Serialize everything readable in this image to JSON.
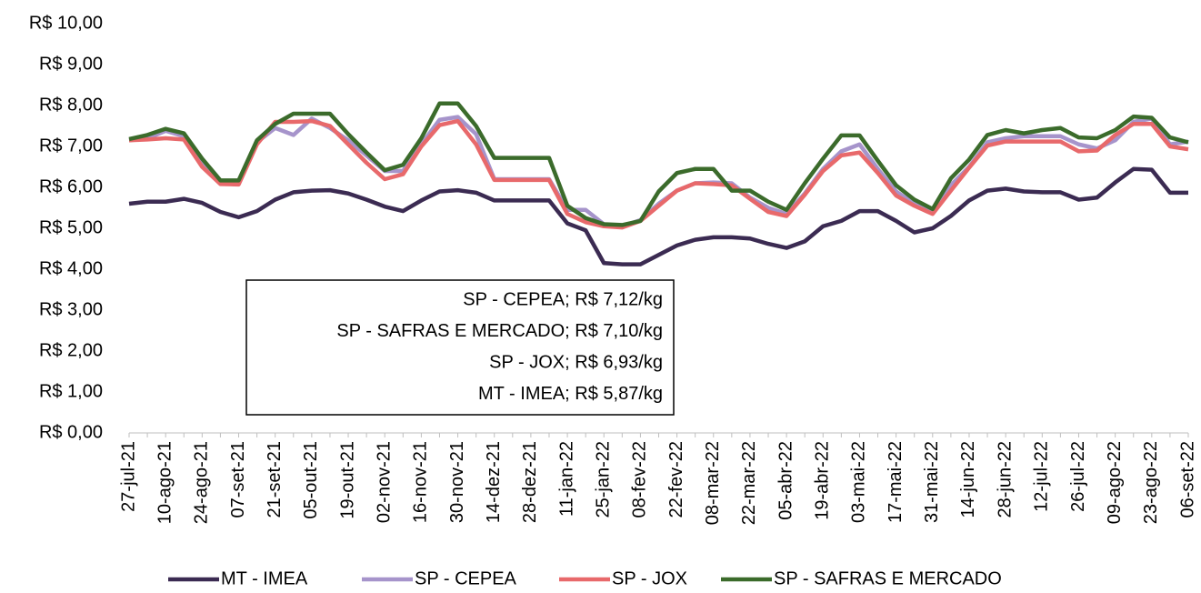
{
  "chart_data": {
    "type": "line",
    "categories": [
      "27-jul-21",
      null,
      "10-ago-21",
      null,
      "24-ago-21",
      null,
      "07-set-21",
      null,
      "21-set-21",
      null,
      "05-out-21",
      null,
      "19-out-21",
      null,
      "02-nov-21",
      null,
      "16-nov-21",
      null,
      "30-nov-21",
      null,
      "14-dez-21",
      null,
      "28-dez-21",
      null,
      "11-jan-22",
      null,
      "25-jan-22",
      null,
      "08-fev-22",
      null,
      "22-fev-22",
      null,
      "08-mar-22",
      null,
      "22-mar-22",
      null,
      "05-abr-22",
      null,
      "19-abr-22",
      null,
      "03-mai-22",
      null,
      "17-mai-22",
      null,
      "31-mai-22",
      null,
      "14-jun-22",
      null,
      "28-jun-22",
      null,
      "12-jul-22",
      null,
      "26-jul-22",
      null,
      "09-ago-22",
      null,
      "23-ago-22",
      null,
      "06-set-22"
    ],
    "series": [
      {
        "name": "MT - IMEA",
        "color": "#3b2b52",
        "values": [
          5.6,
          5.65,
          5.65,
          5.72,
          5.62,
          5.4,
          5.27,
          5.42,
          5.7,
          5.88,
          5.92,
          5.93,
          5.85,
          5.7,
          5.53,
          5.42,
          5.68,
          5.9,
          5.93,
          5.87,
          5.68,
          5.68,
          5.68,
          5.68,
          5.12,
          4.95,
          4.15,
          4.12,
          4.12,
          4.35,
          4.58,
          4.72,
          4.78,
          4.78,
          4.75,
          4.62,
          4.52,
          4.68,
          5.05,
          5.18,
          5.42,
          5.42,
          5.18,
          4.9,
          5.0,
          5.3,
          5.68,
          5.92,
          5.97,
          5.9,
          5.88,
          5.88,
          5.7,
          5.75,
          6.12,
          6.45,
          6.43,
          5.87,
          5.87
        ]
      },
      {
        "name": "SP - CEPEA",
        "color": "#a694cb",
        "values": [
          7.15,
          7.2,
          7.38,
          7.25,
          6.6,
          6.1,
          6.1,
          7.1,
          7.45,
          7.28,
          7.68,
          7.45,
          7.15,
          6.78,
          6.4,
          6.4,
          7.05,
          7.65,
          7.72,
          7.3,
          6.2,
          6.2,
          6.2,
          6.2,
          5.45,
          5.45,
          5.1,
          5.05,
          5.2,
          5.6,
          5.92,
          6.1,
          6.12,
          6.1,
          5.75,
          5.5,
          5.35,
          5.85,
          6.45,
          6.88,
          7.05,
          6.45,
          5.9,
          5.6,
          5.42,
          6.05,
          6.5,
          7.1,
          7.2,
          7.25,
          7.25,
          7.25,
          7.05,
          6.95,
          7.15,
          7.6,
          7.68,
          7.05,
          7.12
        ]
      },
      {
        "name": "SP - JOX",
        "color": "#e8696b",
        "values": [
          7.15,
          7.17,
          7.2,
          7.17,
          6.5,
          6.08,
          6.07,
          7.05,
          7.6,
          7.6,
          7.62,
          7.5,
          7.05,
          6.6,
          6.2,
          6.32,
          7.0,
          7.52,
          7.62,
          7.05,
          6.18,
          6.18,
          6.18,
          6.18,
          5.35,
          5.15,
          5.05,
          5.02,
          5.18,
          5.55,
          5.92,
          6.1,
          6.08,
          6.05,
          5.72,
          5.4,
          5.3,
          5.82,
          6.4,
          6.78,
          6.85,
          6.35,
          5.8,
          5.55,
          5.35,
          5.92,
          6.48,
          7.02,
          7.12,
          7.12,
          7.12,
          7.12,
          6.88,
          6.9,
          7.28,
          7.55,
          7.55,
          7.0,
          6.93
        ]
      },
      {
        "name": "SP - SAFRAS E MERCADO",
        "color": "#3b6b2b",
        "values": [
          7.18,
          7.28,
          7.43,
          7.32,
          6.7,
          6.17,
          6.17,
          7.15,
          7.55,
          7.8,
          7.8,
          7.8,
          7.3,
          6.85,
          6.42,
          6.55,
          7.2,
          8.05,
          8.05,
          7.5,
          6.72,
          6.72,
          6.72,
          6.72,
          5.55,
          5.25,
          5.1,
          5.08,
          5.18,
          5.9,
          6.35,
          6.45,
          6.45,
          5.92,
          5.92,
          5.65,
          5.45,
          6.1,
          6.7,
          7.27,
          7.27,
          6.65,
          6.05,
          5.7,
          5.47,
          6.22,
          6.68,
          7.28,
          7.4,
          7.32,
          7.4,
          7.45,
          7.22,
          7.2,
          7.4,
          7.73,
          7.7,
          7.22,
          7.1
        ]
      }
    ],
    "ylim": [
      0,
      10
    ],
    "yticks": [
      {
        "value": 0,
        "label": "R$ 0,00"
      },
      {
        "value": 1,
        "label": "R$ 1,00"
      },
      {
        "value": 2,
        "label": "R$ 2,00"
      },
      {
        "value": 3,
        "label": "R$ 3,00"
      },
      {
        "value": 4,
        "label": "R$ 4,00"
      },
      {
        "value": 5,
        "label": "R$ 5,00"
      },
      {
        "value": 6,
        "label": "R$ 6,00"
      },
      {
        "value": 7,
        "label": "R$ 7,00"
      },
      {
        "value": 8,
        "label": "R$ 8,00"
      },
      {
        "value": 9,
        "label": "R$ 9,00"
      },
      {
        "value": 10,
        "label": "R$ 10,00"
      }
    ],
    "annotations": [
      "SP - CEPEA; R$ 7,12/kg",
      "SP - SAFRAS E MERCADO; R$ 7,10/kg",
      "SP - JOX; R$ 6,93/kg",
      "MT - IMEA; R$ 5,87/kg"
    ],
    "legend": "bottom"
  }
}
